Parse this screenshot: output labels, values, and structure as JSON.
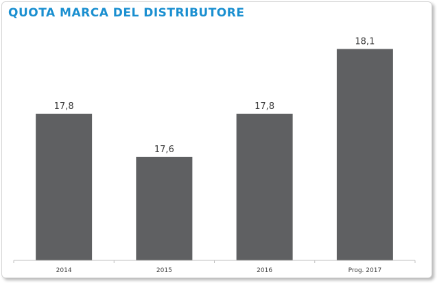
{
  "chart_data": {
    "type": "bar",
    "title": "QUOTA MARCA DEL DISTRIBUTORE",
    "categories": [
      "2014",
      "2015",
      "2016",
      "Prog. 2017"
    ],
    "values": [
      17.8,
      17.6,
      17.8,
      18.1
    ],
    "value_labels": [
      "17,8",
      "17,6",
      "17,8",
      "18,1"
    ],
    "xlabel": "",
    "ylabel": "",
    "ylim": [
      17.12,
      18.2
    ],
    "grid": false,
    "legend": "none",
    "colors": {
      "bar": "#5f6062",
      "title": "#1a8fd0",
      "axis": "#bfbfbf"
    }
  }
}
